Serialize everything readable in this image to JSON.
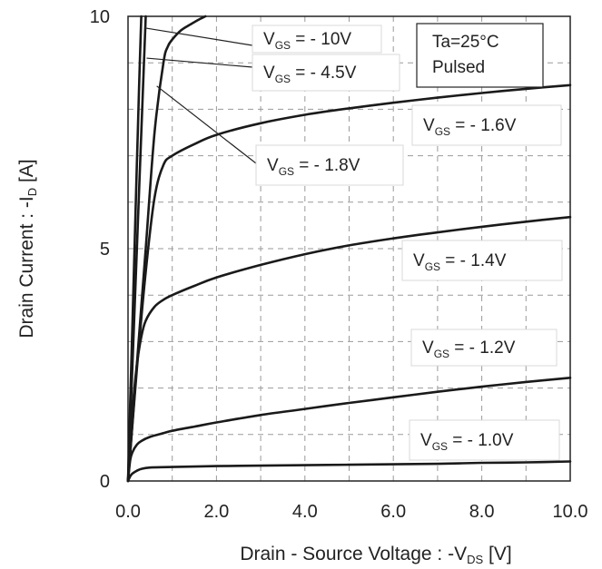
{
  "chart_data": {
    "type": "line",
    "xlabel": "Drain - Source Voltage : -V_DS [V]",
    "ylabel": "Drain Current : -I_D [A]",
    "xlim": [
      0,
      10
    ],
    "ylim": [
      0,
      10
    ],
    "x_ticks": [
      "0.0",
      "2.0",
      "4.0",
      "6.0",
      "8.0",
      "10.0"
    ],
    "y_ticks": [
      "0",
      "5",
      "10"
    ],
    "grid": true,
    "conditions": [
      "Ta=25°C",
      "Pulsed"
    ],
    "series": [
      {
        "name": "VGS = - 10V",
        "main": "V",
        "sub": "GS",
        "rest": "= - 10V",
        "x": [
          0,
          0.05,
          0.1,
          0.15,
          0.2,
          0.25,
          0.3
        ],
        "y": [
          0,
          1.7,
          3.4,
          5.1,
          6.8,
          8.5,
          10
        ]
      },
      {
        "name": "VGS = - 4.5V",
        "main": "V",
        "sub": "GS",
        "rest": "= - 4.5V",
        "x": [
          0,
          0.08,
          0.16,
          0.24,
          0.32,
          0.4
        ],
        "y": [
          0,
          2.0,
          4.0,
          6.0,
          8.0,
          10
        ]
      },
      {
        "name": "VGS = - 1.8V",
        "main": "V",
        "sub": "GS",
        "rest": "= - 1.8V",
        "x": [
          0,
          0.2,
          0.4,
          0.6,
          0.8,
          0.9,
          1.0,
          1.2,
          1.4,
          1.6,
          1.75
        ],
        "y": [
          0,
          2.5,
          5.0,
          7.5,
          9.0,
          9.35,
          9.5,
          9.7,
          9.82,
          9.93,
          10
        ]
      },
      {
        "name": "VGS= - 1.6V",
        "main": "V",
        "sub": "GS",
        "rest": "= - 1.6V",
        "x": [
          0,
          0.2,
          0.4,
          0.6,
          0.8,
          1.0,
          1.5,
          2.0,
          3.0,
          4.0,
          5.0,
          6.0,
          7.0,
          8.0,
          9.0,
          10.0
        ],
        "y": [
          0,
          2.4,
          4.5,
          6.1,
          6.8,
          7.0,
          7.25,
          7.45,
          7.7,
          7.88,
          8.02,
          8.14,
          8.25,
          8.35,
          8.44,
          8.52
        ]
      },
      {
        "name": "VGS = - 1.4V",
        "main": "V",
        "sub": "GS",
        "rest": "= - 1.4V",
        "x": [
          0,
          0.1,
          0.2,
          0.3,
          0.4,
          0.6,
          0.8,
          1.0,
          1.5,
          2.0,
          3.0,
          4.0,
          5.0,
          6.0,
          7.0,
          8.0,
          9.0,
          10.0
        ],
        "y": [
          0,
          1.5,
          2.5,
          3.1,
          3.45,
          3.75,
          3.9,
          4.0,
          4.2,
          4.38,
          4.65,
          4.88,
          5.07,
          5.22,
          5.35,
          5.47,
          5.58,
          5.68
        ]
      },
      {
        "name": "VGS = - 1.2V",
        "main": "V",
        "sub": "GS",
        "rest": "= - 1.2V",
        "x": [
          0,
          0.05,
          0.1,
          0.2,
          0.3,
          0.5,
          0.8,
          1.0,
          1.5,
          2.0,
          3.0,
          4.0,
          5.0,
          6.0,
          7.0,
          8.0,
          9.0,
          10.0
        ],
        "y": [
          0,
          0.45,
          0.62,
          0.78,
          0.86,
          0.95,
          1.03,
          1.08,
          1.17,
          1.26,
          1.42,
          1.55,
          1.68,
          1.8,
          1.92,
          2.03,
          2.13,
          2.22
        ]
      },
      {
        "name": "VGS = - 1.0V",
        "main": "V",
        "sub": "GS",
        "rest": "= - 1.0V",
        "x": [
          0,
          0.05,
          0.1,
          0.2,
          0.3,
          0.5,
          1.0,
          2.0,
          3.0,
          4.0,
          5.0,
          6.0,
          7.0,
          8.0,
          9.0,
          10.0
        ],
        "y": [
          0,
          0.1,
          0.16,
          0.22,
          0.26,
          0.29,
          0.3,
          0.32,
          0.33,
          0.34,
          0.35,
          0.36,
          0.37,
          0.39,
          0.4,
          0.42
        ]
      }
    ]
  }
}
